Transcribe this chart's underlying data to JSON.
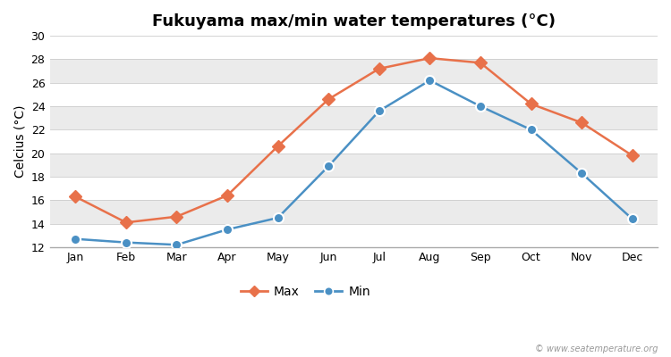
{
  "title": "Fukuyama max/min water temperatures (°C)",
  "ylabel": "Celcius (°C)",
  "months": [
    "Jan",
    "Feb",
    "Mar",
    "Apr",
    "May",
    "Jun",
    "Jul",
    "Aug",
    "Sep",
    "Oct",
    "Nov",
    "Dec"
  ],
  "max_temps": [
    16.3,
    14.1,
    14.6,
    16.4,
    20.6,
    24.6,
    27.2,
    28.1,
    27.7,
    24.2,
    22.6,
    19.8
  ],
  "min_temps": [
    12.7,
    12.4,
    12.2,
    13.5,
    14.5,
    18.9,
    23.6,
    26.2,
    24.0,
    22.0,
    18.3,
    14.4
  ],
  "max_color": "#e8714a",
  "min_color": "#4a90c4",
  "ylim": [
    12,
    30
  ],
  "yticks": [
    12,
    14,
    16,
    18,
    20,
    22,
    24,
    26,
    28,
    30
  ],
  "outer_bg": "#ffffff",
  "band_light": "#ffffff",
  "band_dark": "#ebebeb",
  "watermark": "© www.seatemperature.org",
  "legend_max": "Max",
  "legend_min": "Min",
  "title_fontsize": 13,
  "label_fontsize": 10,
  "tick_fontsize": 9,
  "marker_size_max": 7,
  "marker_size_min": 8,
  "line_width": 1.8
}
